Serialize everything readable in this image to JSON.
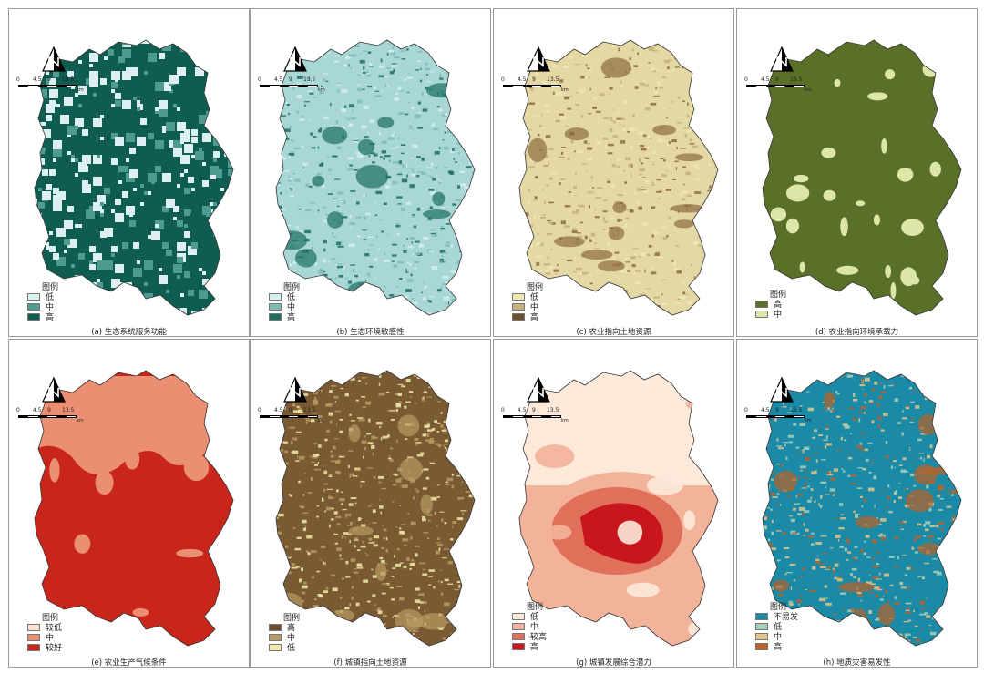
{
  "panels": [
    {
      "caption": "(a) 生态系统服务功能",
      "legend_title": "图例",
      "classes": [
        {
          "label": "低",
          "color": "#dcf0f2"
        },
        {
          "label": "中",
          "color": "#4f9a91"
        },
        {
          "label": "高",
          "color": "#0f5d50"
        }
      ],
      "base_color": "#0f5d50",
      "patch_colors": [
        "#dcf0f2",
        "#dcf0f2",
        "#4f9a91"
      ],
      "texture": "blocky"
    },
    {
      "caption": "(b) 生态环境敏感性",
      "legend_title": "图例",
      "classes": [
        {
          "label": "低",
          "color": "#d6eef0"
        },
        {
          "label": "中",
          "color": "#7fbcb6"
        },
        {
          "label": "高",
          "color": "#1d6f62"
        }
      ],
      "base_color": "#a9d7d6",
      "patch_colors": [
        "#d6eef0",
        "#7fbcb6",
        "#1d6f62"
      ],
      "texture": "fine"
    },
    {
      "caption": "(c) 农业指向土地资源",
      "legend_title": "图例",
      "classes": [
        {
          "label": "低",
          "color": "#eee7b4"
        },
        {
          "label": "中",
          "color": "#c8b07c"
        },
        {
          "label": "高",
          "color": "#6e4f2b"
        }
      ],
      "base_color": "#e4d9a4",
      "patch_colors": [
        "#eee7b4",
        "#c8b07c",
        "#8d6b3e"
      ],
      "texture": "fine"
    },
    {
      "caption": "(d) 农业指向环境承载力",
      "legend_title": "图例",
      "classes": [
        {
          "label": "高",
          "color": "#5a7028"
        },
        {
          "label": "中",
          "color": "#dbe6a8"
        }
      ],
      "base_color": "#5a7028",
      "patch_colors": [
        "#dbe6a8"
      ],
      "texture": "sparse"
    },
    {
      "caption": "(e) 农业生产气候条件",
      "legend_title": "图例",
      "classes": [
        {
          "label": "较低",
          "color": "#fbe0cf"
        },
        {
          "label": "中",
          "color": "#ea8f72"
        },
        {
          "label": "较好",
          "color": "#c9261b"
        }
      ],
      "base_color": "#c9261b",
      "patch_colors": [
        "#ea8f72",
        "#ea8f72"
      ],
      "texture": "smooth"
    },
    {
      "caption": "(f) 城镇指向土地资源",
      "legend_title": "图例",
      "classes": [
        {
          "label": "高",
          "color": "#6e4f2b"
        },
        {
          "label": "中",
          "color": "#b89a63"
        },
        {
          "label": "低",
          "color": "#f0eaa8"
        }
      ],
      "base_color": "#7a5a32",
      "patch_colors": [
        "#f0eaa8",
        "#b89a63"
      ],
      "texture": "fine"
    },
    {
      "caption": "(g) 城镇发展综合潜力",
      "legend_title": "图例",
      "classes": [
        {
          "label": "低",
          "color": "#fde9da"
        },
        {
          "label": "中",
          "color": "#f3b39a"
        },
        {
          "label": "较高",
          "color": "#e0705a"
        },
        {
          "label": "高",
          "color": "#c8161d"
        }
      ],
      "base_color": "#f3b39a",
      "patch_colors": [
        "#fde9da"
      ],
      "texture": "zonal"
    },
    {
      "caption": "(h) 地质灾害易发性",
      "legend_title": "图例",
      "classes": [
        {
          "label": "不易发",
          "color": "#1b8aa6"
        },
        {
          "label": "低",
          "color": "#a8d0b8"
        },
        {
          "label": "中",
          "color": "#e3c48a"
        },
        {
          "label": "高",
          "color": "#b8622a"
        }
      ],
      "base_color": "#1b8aa6",
      "patch_colors": [
        "#a8d0b8",
        "#e3c48a",
        "#b8622a"
      ],
      "texture": "fine"
    }
  ],
  "scale_bar": {
    "ticks": [
      "0",
      "4.5",
      "9",
      "13.5"
    ],
    "unit": "km"
  }
}
